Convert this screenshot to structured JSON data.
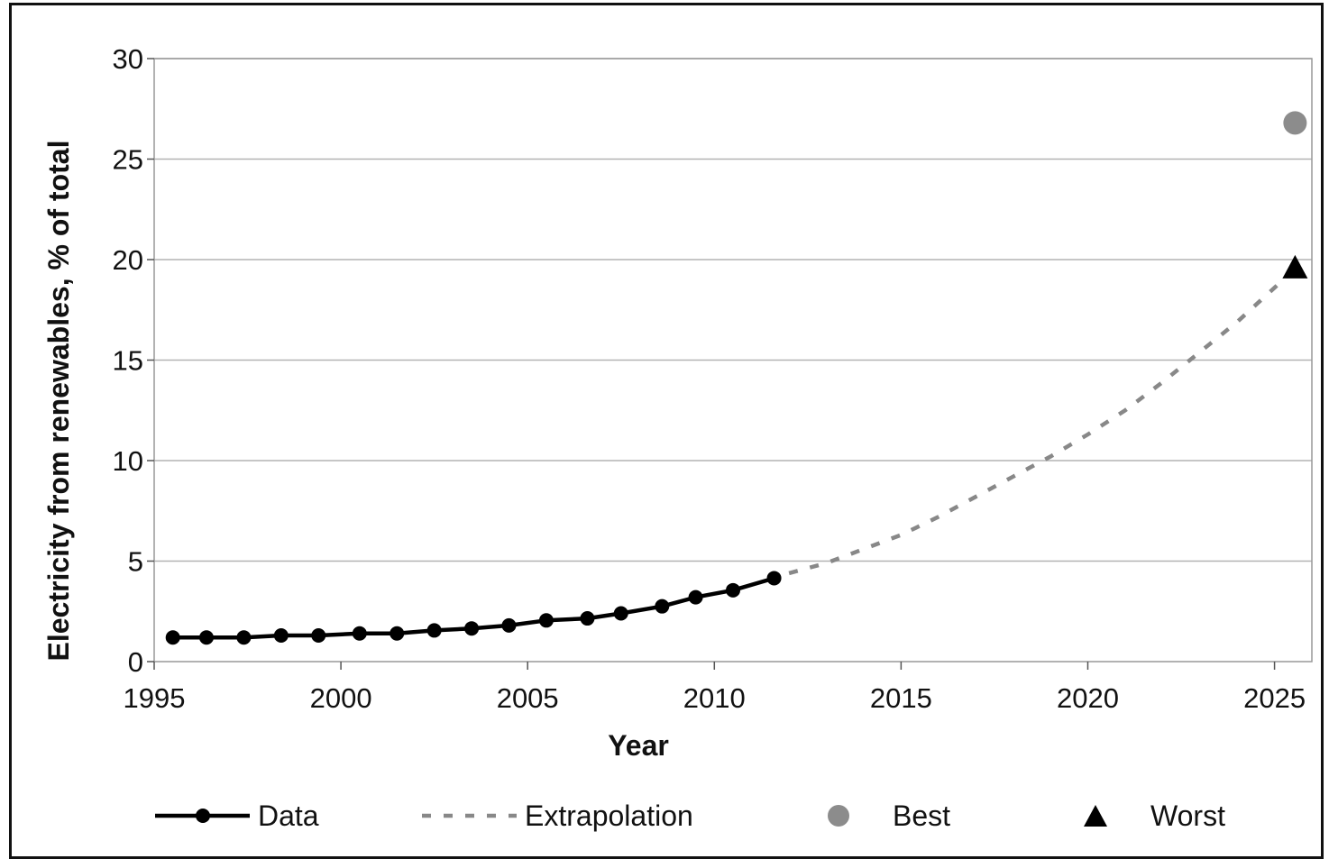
{
  "chart_data": {
    "type": "line",
    "title": "",
    "xlabel": "Year",
    "ylabel": "Electricity from renewables, % of total",
    "xlim": [
      1995,
      2026
    ],
    "ylim": [
      0,
      30
    ],
    "x_ticks": [
      1995,
      2000,
      2005,
      2010,
      2015,
      2020,
      2025
    ],
    "y_ticks": [
      0,
      5,
      10,
      15,
      20,
      25,
      30
    ],
    "grid": "horizontal",
    "legend_position": "bottom",
    "series": [
      {
        "name": "Data",
        "style": "solid-line-with-circle-markers",
        "color": "#000000",
        "points": [
          [
            1995.5,
            1.2
          ],
          [
            1996.4,
            1.2
          ],
          [
            1997.4,
            1.2
          ],
          [
            1998.4,
            1.3
          ],
          [
            1999.4,
            1.3
          ],
          [
            2000.5,
            1.4
          ],
          [
            2001.5,
            1.4
          ],
          [
            2002.5,
            1.55
          ],
          [
            2003.5,
            1.65
          ],
          [
            2004.5,
            1.8
          ],
          [
            2005.5,
            2.05
          ],
          [
            2006.6,
            2.15
          ],
          [
            2007.5,
            2.4
          ],
          [
            2008.6,
            2.75
          ],
          [
            2009.5,
            3.2
          ],
          [
            2010.5,
            3.55
          ],
          [
            2011.6,
            4.15
          ]
        ]
      },
      {
        "name": "Extrapolation",
        "style": "dashed-line",
        "color": "#888888",
        "points": [
          [
            2012,
            4.4
          ],
          [
            2013,
            4.9
          ],
          [
            2014,
            5.6
          ],
          [
            2015,
            6.3
          ],
          [
            2016,
            7.2
          ],
          [
            2017,
            8.2
          ],
          [
            2018,
            9.2
          ],
          [
            2019,
            10.2
          ],
          [
            2020,
            11.3
          ],
          [
            2021,
            12.5
          ],
          [
            2022,
            13.9
          ],
          [
            2023,
            15.4
          ],
          [
            2024,
            16.9
          ],
          [
            2025,
            18.6
          ],
          [
            2025.7,
            19.8
          ]
        ]
      },
      {
        "name": "Best",
        "style": "grey-circle-marker",
        "color": "#8c8c8c",
        "points": [
          [
            2025.55,
            26.8
          ]
        ]
      },
      {
        "name": "Worst",
        "style": "black-triangle-marker",
        "color": "#000000",
        "points": [
          [
            2025.55,
            19.6
          ]
        ]
      }
    ]
  }
}
